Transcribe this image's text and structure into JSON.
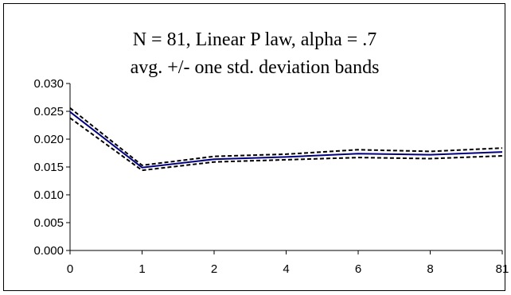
{
  "chart_data": {
    "type": "line",
    "title": "N = 81, Linear P law, alpha = .7",
    "subtitle": "avg. +/- one std. deviation bands",
    "xlabel": "",
    "ylabel": "",
    "categories": [
      "0",
      "1",
      "2",
      "4",
      "6",
      "8",
      "81"
    ],
    "ylim": [
      0,
      0.03
    ],
    "yticks": [
      "0.000",
      "0.005",
      "0.010",
      "0.015",
      "0.020",
      "0.025",
      "0.030"
    ],
    "grid": false,
    "legend": "none",
    "series": [
      {
        "role": "average",
        "style": "solid",
        "color": "#000080",
        "values": [
          0.0249,
          0.0149,
          0.0164,
          0.0168,
          0.0174,
          0.0172,
          0.0177
        ]
      },
      {
        "role": "upper-band",
        "style": "dashed",
        "color": "#000000",
        "values": [
          0.0256,
          0.0153,
          0.0169,
          0.0173,
          0.0181,
          0.0178,
          0.0184
        ]
      },
      {
        "role": "lower-band",
        "style": "dashed",
        "color": "#000000",
        "values": [
          0.0238,
          0.0144,
          0.0159,
          0.0163,
          0.0167,
          0.0165,
          0.017
        ]
      }
    ]
  }
}
